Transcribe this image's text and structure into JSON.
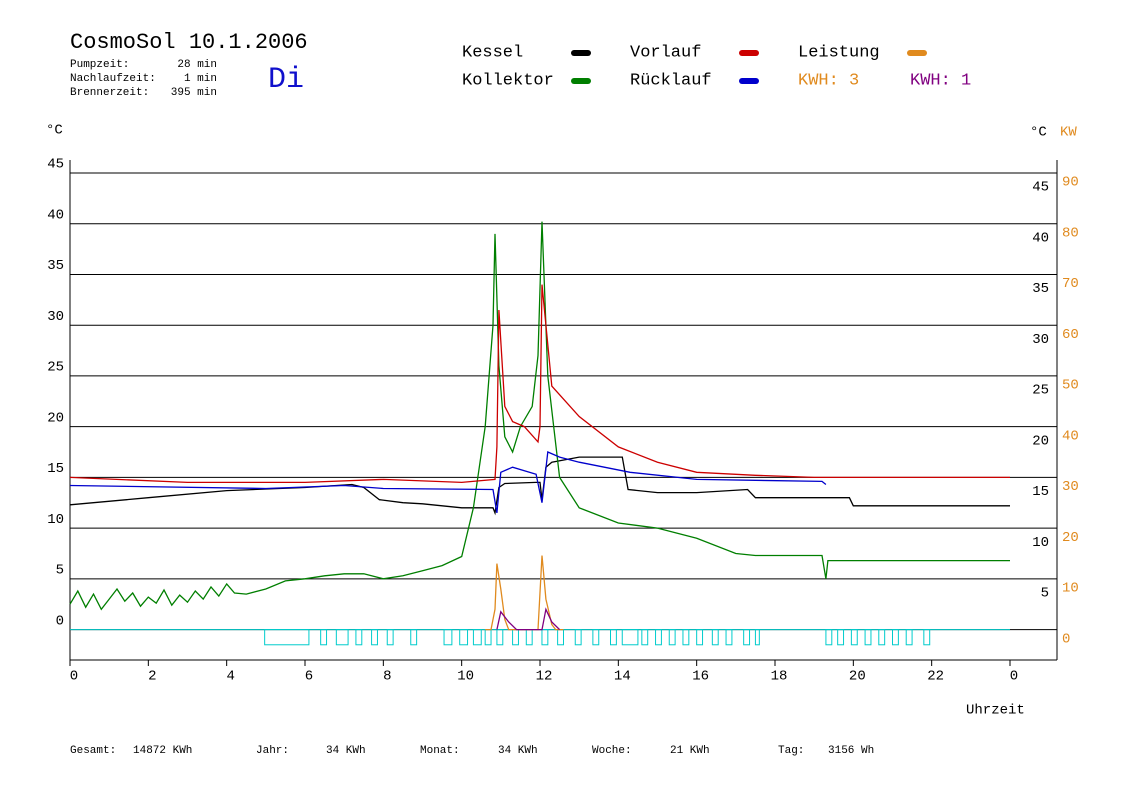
{
  "chart_data": {
    "type": "line",
    "title": "CosmoSol 10.1.2006",
    "day": "Di",
    "info": [
      {
        "label": "Pumpzeit:",
        "value": "28 min"
      },
      {
        "label": "Nachlaufzeit:",
        "value": "1 min"
      },
      {
        "label": "Brennerzeit:",
        "value": "395 min"
      }
    ],
    "y_label": "°C",
    "y_label_right": "°C",
    "y2_label": "KW",
    "x_label": "Uhrzeit",
    "xlim": [
      0,
      25.2
    ],
    "xticks": [
      0,
      2,
      4,
      6,
      8,
      10,
      12,
      14,
      16,
      18,
      20,
      22,
      {
        "value": 24,
        "label": "0"
      }
    ],
    "ylim": [
      -3,
      45
    ],
    "yticks": [
      0,
      5,
      10,
      15,
      20,
      25,
      30,
      35,
      40,
      45
    ],
    "yticks_right": [
      5,
      10,
      15,
      20,
      25,
      30,
      35,
      40,
      45
    ],
    "y2lim": [
      -6,
      90
    ],
    "y2ticks": [
      0,
      10,
      20,
      30,
      40,
      50,
      60,
      70,
      80,
      90
    ],
    "grid": true,
    "kwh": [
      {
        "text": "KWH: 3",
        "color": "#e08a1e"
      },
      {
        "text": "KWH: 1",
        "color": "#800080"
      }
    ],
    "series": [
      {
        "name": "Kessel",
        "color": "#000000",
        "x": [
          0,
          2,
          4,
          6,
          7.2,
          7.5,
          7.9,
          8.5,
          9,
          10,
          10.8,
          10.85,
          10.95,
          11.1,
          11.9,
          12.0,
          12.05,
          12.15,
          12.3,
          13,
          14.1,
          14.25,
          15,
          16,
          17.3,
          17.5,
          19.9,
          20.0,
          24
        ],
        "values": [
          12.3,
          13,
          13.7,
          14,
          14.3,
          14,
          12.8,
          12.5,
          12.4,
          12,
          12,
          11.5,
          14,
          14.4,
          14.5,
          14.5,
          12.8,
          16,
          16.5,
          17,
          17,
          13.8,
          13.5,
          13.5,
          13.8,
          13,
          13,
          12.2,
          12.2
        ]
      },
      {
        "name": "Kollektor",
        "color": "#007f00",
        "x": [
          0,
          0.2,
          0.4,
          0.6,
          0.8,
          1,
          1.2,
          1.4,
          1.6,
          1.8,
          2,
          2.2,
          2.4,
          2.6,
          2.8,
          3,
          3.2,
          3.4,
          3.6,
          3.8,
          4,
          4.2,
          4.5,
          5,
          5.5,
          6,
          6.5,
          7,
          7.5,
          8,
          8.5,
          9,
          9.5,
          10,
          10.3,
          10.6,
          10.8,
          10.85,
          10.95,
          11.1,
          11.3,
          11.5,
          11.8,
          11.95,
          12.05,
          12.2,
          12.5,
          13,
          14,
          15,
          16,
          17,
          17.5,
          19.2,
          19.3,
          19.35,
          24
        ],
        "values": [
          2.5,
          3.8,
          2.2,
          3.5,
          2,
          3,
          4,
          2.8,
          3.6,
          2.3,
          3.2,
          2.6,
          3.9,
          2.4,
          3.4,
          2.7,
          3.8,
          3,
          4.2,
          3.3,
          4.5,
          3.6,
          3.5,
          4,
          4.8,
          5,
          5.3,
          5.5,
          5.5,
          5,
          5.3,
          5.8,
          6.3,
          7.2,
          12,
          20,
          30,
          39,
          26,
          19,
          17.5,
          20,
          22,
          27,
          40.2,
          25,
          15,
          12,
          10.5,
          10,
          9,
          7.5,
          7.3,
          7.3,
          5,
          6.8,
          6.8
        ]
      },
      {
        "name": "Vorlauf",
        "color": "#cc0000",
        "x": [
          0,
          3,
          6,
          8,
          10,
          10.85,
          10.9,
          10.95,
          11.1,
          11.3,
          11.6,
          11.95,
          12.0,
          12.05,
          12.3,
          13,
          14,
          15,
          16,
          17.5,
          19,
          24
        ],
        "values": [
          15,
          14.5,
          14.5,
          14.8,
          14.5,
          14.8,
          18,
          31.5,
          22,
          20.5,
          20,
          18.5,
          20,
          34,
          24,
          21,
          18,
          16.5,
          15.5,
          15.2,
          15,
          15
        ]
      },
      {
        "name": "Rücklauf",
        "color": "#0000cc",
        "x": [
          0,
          5,
          7,
          8,
          10.8,
          10.9,
          11,
          11.3,
          11.9,
          12.05,
          12.2,
          12.5,
          13,
          14.3,
          16,
          19.2,
          19.3
        ],
        "values": [
          14.2,
          13.9,
          14.2,
          13.9,
          13.8,
          11.5,
          15.5,
          16,
          15.3,
          12.5,
          17.5,
          17,
          16.5,
          15.5,
          14.8,
          14.6,
          14.3
        ]
      },
      {
        "name": "Leistung",
        "color": "#e08a1e",
        "axis": "y2",
        "x": [
          10.6,
          10.75,
          10.85,
          10.9,
          11.0,
          11.1,
          11.2,
          11.95,
          12.05,
          12.15,
          12.3,
          12.4,
          12.6
        ],
        "values": [
          0,
          0,
          4,
          13,
          8,
          2,
          0,
          0,
          14.6,
          6,
          1,
          0,
          0
        ]
      },
      {
        "color": "#800080",
        "axis": "y2",
        "x": [
          10.9,
          11.0,
          11.2,
          11.4,
          12.05,
          12.15,
          12.3,
          12.5
        ],
        "values": [
          0,
          3.5,
          1.5,
          0,
          0,
          4,
          1.5,
          0
        ]
      }
    ],
    "pump": {
      "color": "#00cccc",
      "level": -1.5,
      "intervals": [
        [
          4.97,
          6.1
        ],
        [
          6.4,
          6.55
        ],
        [
          6.8,
          7.1
        ],
        [
          7.3,
          7.45
        ],
        [
          7.7,
          7.85
        ],
        [
          8.1,
          8.25
        ],
        [
          8.7,
          8.85
        ],
        [
          9.55,
          9.75
        ],
        [
          9.95,
          10.15
        ],
        [
          10.3,
          10.5
        ],
        [
          10.6,
          10.75
        ],
        [
          10.9,
          11.05
        ],
        [
          11.3,
          11.45
        ],
        [
          11.65,
          11.8
        ],
        [
          12.05,
          12.2
        ],
        [
          12.45,
          12.6
        ],
        [
          12.9,
          13.05
        ],
        [
          13.35,
          13.5
        ],
        [
          13.8,
          13.95
        ],
        [
          14.1,
          14.5
        ],
        [
          14.6,
          14.75
        ],
        [
          14.95,
          15.1
        ],
        [
          15.3,
          15.45
        ],
        [
          15.65,
          15.8
        ],
        [
          16.0,
          16.15
        ],
        [
          16.4,
          16.55
        ],
        [
          16.75,
          16.9
        ],
        [
          17.2,
          17.35
        ],
        [
          17.5,
          17.6
        ],
        [
          19.3,
          19.45
        ],
        [
          19.6,
          19.75
        ],
        [
          19.95,
          20.1
        ],
        [
          20.3,
          20.45
        ],
        [
          20.65,
          20.8
        ],
        [
          21.0,
          21.15
        ],
        [
          21.35,
          21.5
        ],
        [
          21.8,
          21.95
        ]
      ]
    },
    "totals": [
      {
        "label": "Gesamt:",
        "value": "14872 KWh"
      },
      {
        "label": "Jahr:",
        "value": "34 KWh"
      },
      {
        "label": "Monat:",
        "value": "34 KWh"
      },
      {
        "label": "Woche:",
        "value": "21 KWh"
      },
      {
        "label": "Tag:",
        "value": "3156 Wh"
      }
    ]
  }
}
